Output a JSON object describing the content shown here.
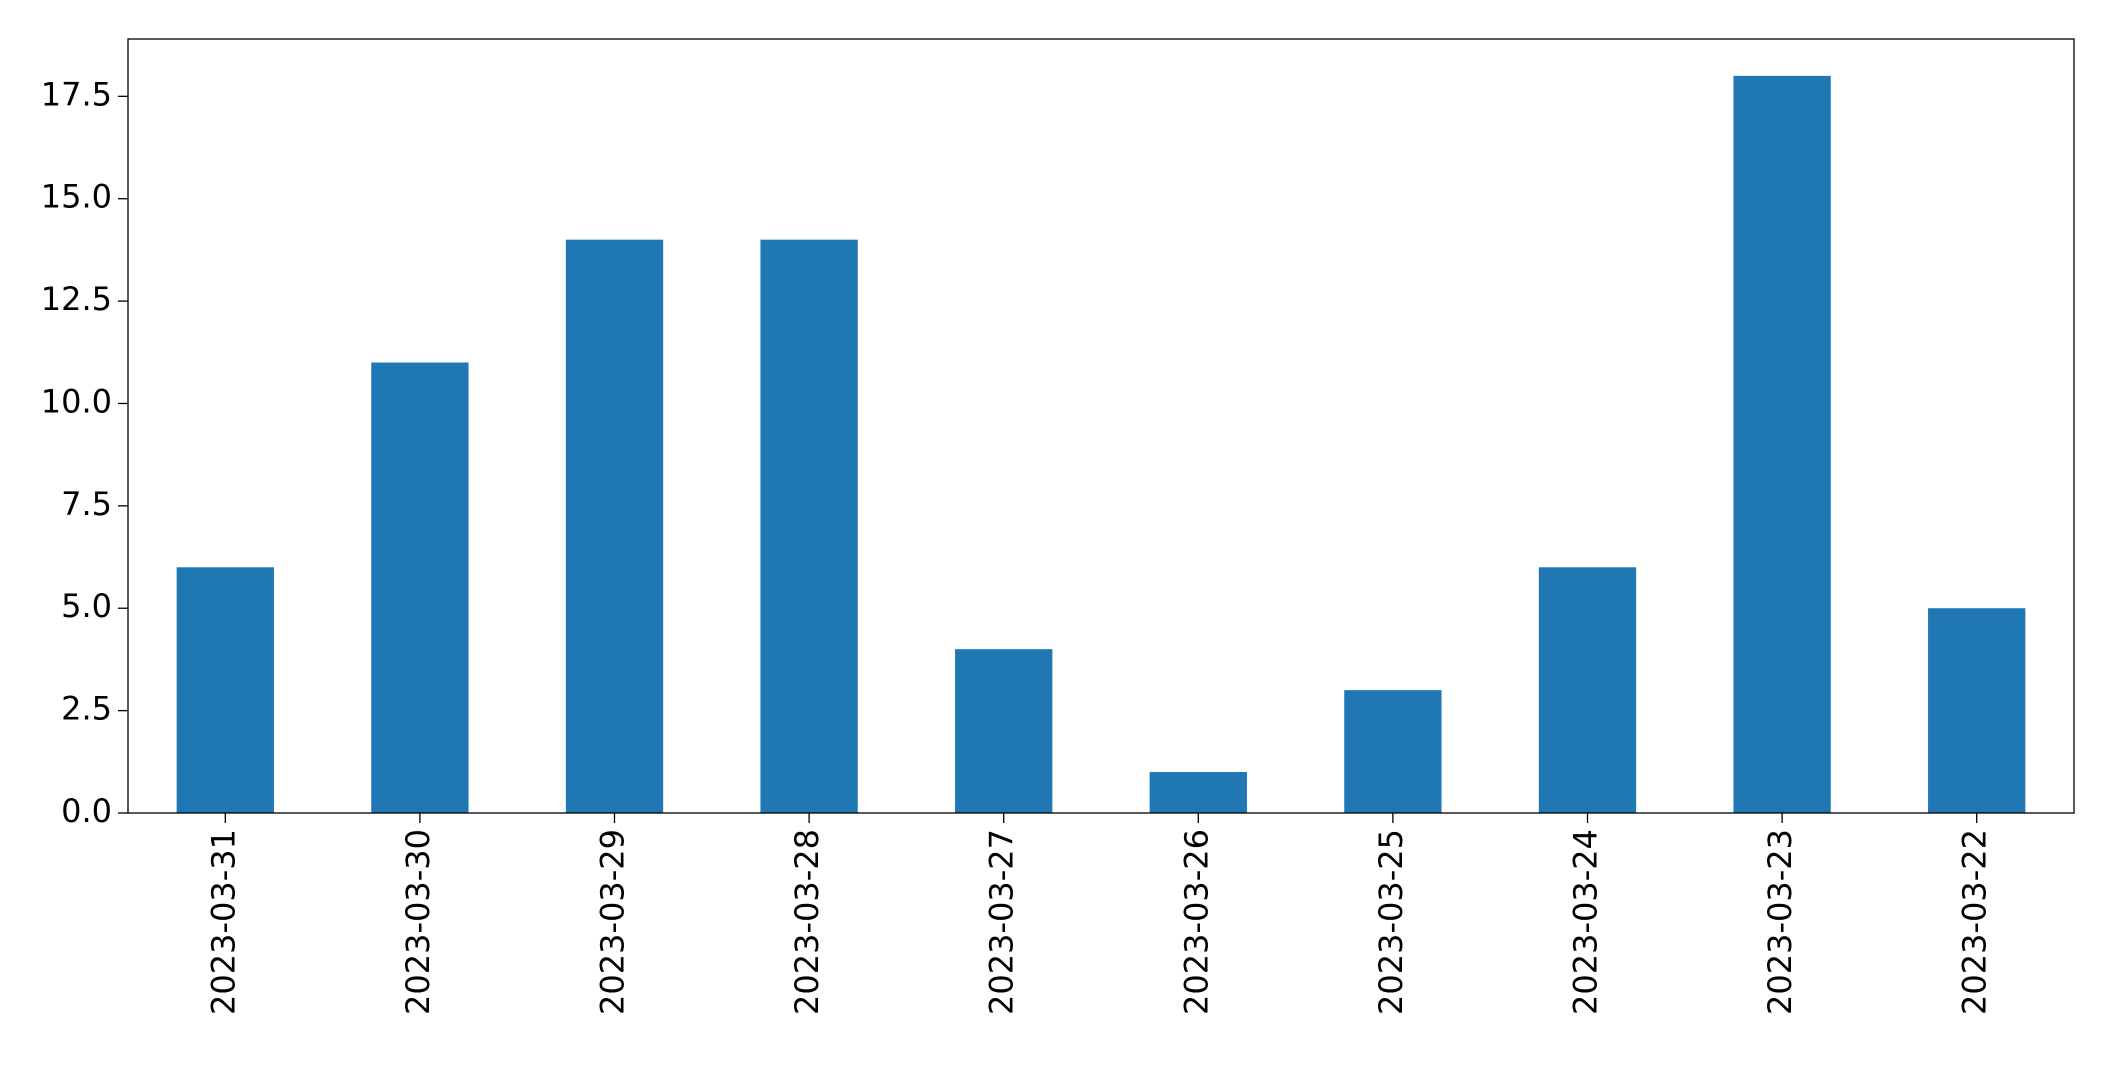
{
  "chart_data": {
    "type": "bar",
    "categories": [
      "2023-03-31",
      "2023-03-30",
      "2023-03-29",
      "2023-03-28",
      "2023-03-27",
      "2023-03-26",
      "2023-03-25",
      "2023-03-24",
      "2023-03-23",
      "2023-03-22"
    ],
    "values": [
      6,
      11,
      14,
      14,
      4,
      1,
      3,
      6,
      18,
      5
    ],
    "color": "#1f77b4",
    "ylim": [
      0,
      18.9
    ],
    "yticks": [
      {
        "value": 0,
        "label": "0.0"
      },
      2.5,
      {
        "value": 5,
        "label": "5.0"
      },
      7.5,
      {
        "value": 10,
        "label": "10.0"
      },
      12.5,
      {
        "value": 15,
        "label": "15.0"
      },
      17.5
    ],
    "grid": false
  }
}
